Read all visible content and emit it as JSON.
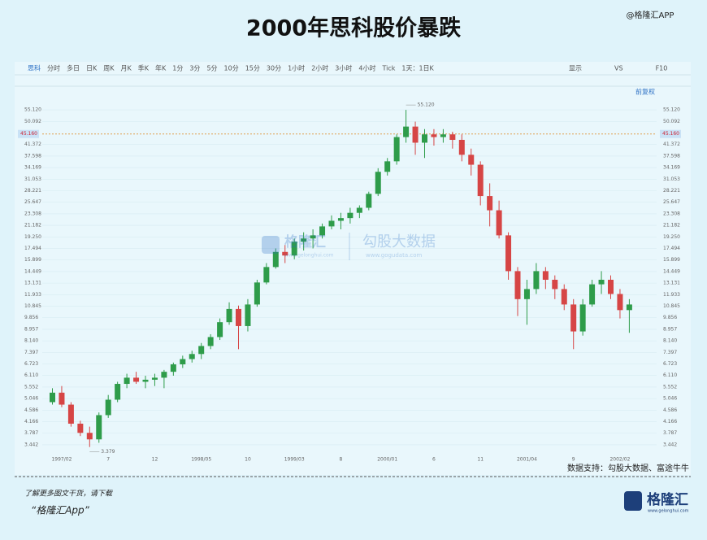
{
  "header": {
    "title": "2000年思科股价暴跌",
    "handle": "@格隆汇APP"
  },
  "toolbar": {
    "items": [
      "思科",
      "分时",
      "多日",
      "日K",
      "周K",
      "月K",
      "季K",
      "年K",
      "1分",
      "3分",
      "5分",
      "10分",
      "15分",
      "30分",
      "1小时",
      "2小时",
      "3小时",
      "4小时",
      "Tick",
      "1天：1日K"
    ],
    "right": [
      "显示",
      "VS",
      "F10"
    ],
    "adjust": "前复权"
  },
  "watermark": {
    "brand": "格隆汇",
    "brand_url": "www.gelonghui.com",
    "data_brand": "勾股大数据",
    "data_url": "www.gogudata.com"
  },
  "source": "数据支持：勾股大数据、富途牛牛",
  "footer": {
    "line1": "了解更多图文干货，请下载",
    "line2": "“格隆汇App”",
    "logo": "格隆汇",
    "logo_url": "www.gelonghui.com"
  },
  "chart_data": {
    "type": "candlestick",
    "log_scale": true,
    "grid": true,
    "up_color": "#2e9c4a",
    "down_color": "#d64545",
    "categories": [
      null,
      "1997/02",
      null,
      null,
      null,
      null,
      "7",
      null,
      null,
      null,
      null,
      "12",
      null,
      null,
      null,
      null,
      "1998/05",
      null,
      null,
      null,
      null,
      "10",
      null,
      null,
      null,
      null,
      "1999/03",
      null,
      null,
      null,
      null,
      "8",
      null,
      null,
      null,
      null,
      "2000/01",
      null,
      null,
      null,
      null,
      "6",
      null,
      null,
      null,
      null,
      "11",
      null,
      null,
      null,
      null,
      "2001/04",
      null,
      null,
      null,
      null,
      "9",
      null,
      null,
      null,
      null,
      "2002/02",
      null
    ],
    "open": [
      4.9,
      5.3,
      4.8,
      4.1,
      3.8,
      3.6,
      4.4,
      5.0,
      5.7,
      6.0,
      5.8,
      5.9,
      6.0,
      6.3,
      6.7,
      7.0,
      7.3,
      7.8,
      8.4,
      9.5,
      10.6,
      9.2,
      11.0,
      13.2,
      15,
      17,
      16.5,
      18.5,
      19,
      19.5,
      21,
      22,
      22.5,
      23.5,
      24.5,
      27.5,
      33,
      36,
      44,
      48,
      42,
      45,
      44,
      45,
      43,
      38,
      35,
      27,
      24,
      19.5,
      14.5,
      11.5,
      12.5,
      14.5,
      13.5,
      12.5,
      11,
      8.8,
      11,
      13,
      13.5,
      12,
      10.5
    ],
    "high": [
      5.5,
      5.6,
      4.9,
      4.2,
      4.0,
      4.5,
      5.2,
      5.8,
      6.2,
      6.3,
      6.1,
      6.2,
      6.4,
      6.8,
      7.2,
      7.5,
      8.0,
      8.6,
      9.8,
      11.2,
      10.9,
      11.5,
      13.5,
      15.5,
      17.5,
      18,
      19,
      20,
      20.5,
      21.5,
      23,
      23.5,
      24.5,
      25,
      28,
      34,
      37,
      45,
      55.12,
      50,
      47,
      47,
      47,
      46,
      45,
      40,
      36,
      30,
      26,
      20,
      15,
      13.5,
      15.5,
      15,
      14,
      13,
      11.5,
      11.5,
      13.5,
      14.5,
      14,
      12.5,
      11.5
    ],
    "low": [
      4.8,
      4.7,
      4.0,
      3.7,
      3.379,
      3.5,
      4.3,
      4.9,
      5.5,
      5.7,
      5.5,
      5.6,
      5.5,
      6.1,
      6.5,
      6.8,
      7.0,
      7.6,
      8.2,
      9.3,
      7.6,
      8.8,
      10.8,
      13.0,
      14.8,
      15.5,
      16,
      17.2,
      17.5,
      19,
      20.5,
      20.5,
      21.5,
      22.5,
      24,
      27,
      32,
      35,
      42,
      38,
      37,
      41,
      42,
      40,
      36,
      32,
      25,
      21,
      19,
      13.5,
      10,
      9.3,
      12,
      12.5,
      11.5,
      10.5,
      7.6,
      8.5,
      10.8,
      12,
      11.5,
      9.8,
      8.7
    ],
    "close": [
      5.3,
      4.8,
      4.1,
      3.8,
      3.6,
      4.4,
      5.0,
      5.7,
      6.0,
      5.8,
      5.9,
      6.0,
      6.3,
      6.7,
      7.0,
      7.3,
      7.8,
      8.4,
      9.5,
      10.6,
      9.2,
      11.0,
      13.2,
      15.0,
      17,
      16.5,
      18.5,
      19,
      19.5,
      21,
      22,
      22.5,
      23.5,
      24.5,
      27.5,
      33,
      36,
      44,
      48,
      42,
      45,
      44,
      45,
      43,
      38,
      35,
      27,
      24,
      19.5,
      14.5,
      11.5,
      12.5,
      14.5,
      13.5,
      12.5,
      11,
      8.8,
      11,
      13,
      13.5,
      12,
      10.5,
      11.0
    ],
    "ylim": [
      3.26,
      59
    ],
    "yticks": [
      3.442,
      3.787,
      4.166,
      4.586,
      5.046,
      5.552,
      {
        "value": 6.11,
        "label": "6.110"
      },
      6.723,
      7.397,
      {
        "value": 8.14,
        "label": "8.140"
      },
      8.957,
      9.856,
      10.845,
      11.933,
      13.131,
      14.449,
      15.899,
      17.494,
      {
        "value": 19.25,
        "label": "19.250"
      },
      21.182,
      23.308,
      25.647,
      28.221,
      31.053,
      34.169,
      37.598,
      41.372,
      50.092,
      {
        "value": 55.12,
        "label": "55.120"
      }
    ],
    "ref_line": {
      "value": 45.16,
      "label": "45.160"
    },
    "annotations": [
      {
        "value": 55.12,
        "label": "55.120"
      },
      {
        "value": 3.379,
        "label": "3.379"
      }
    ]
  }
}
